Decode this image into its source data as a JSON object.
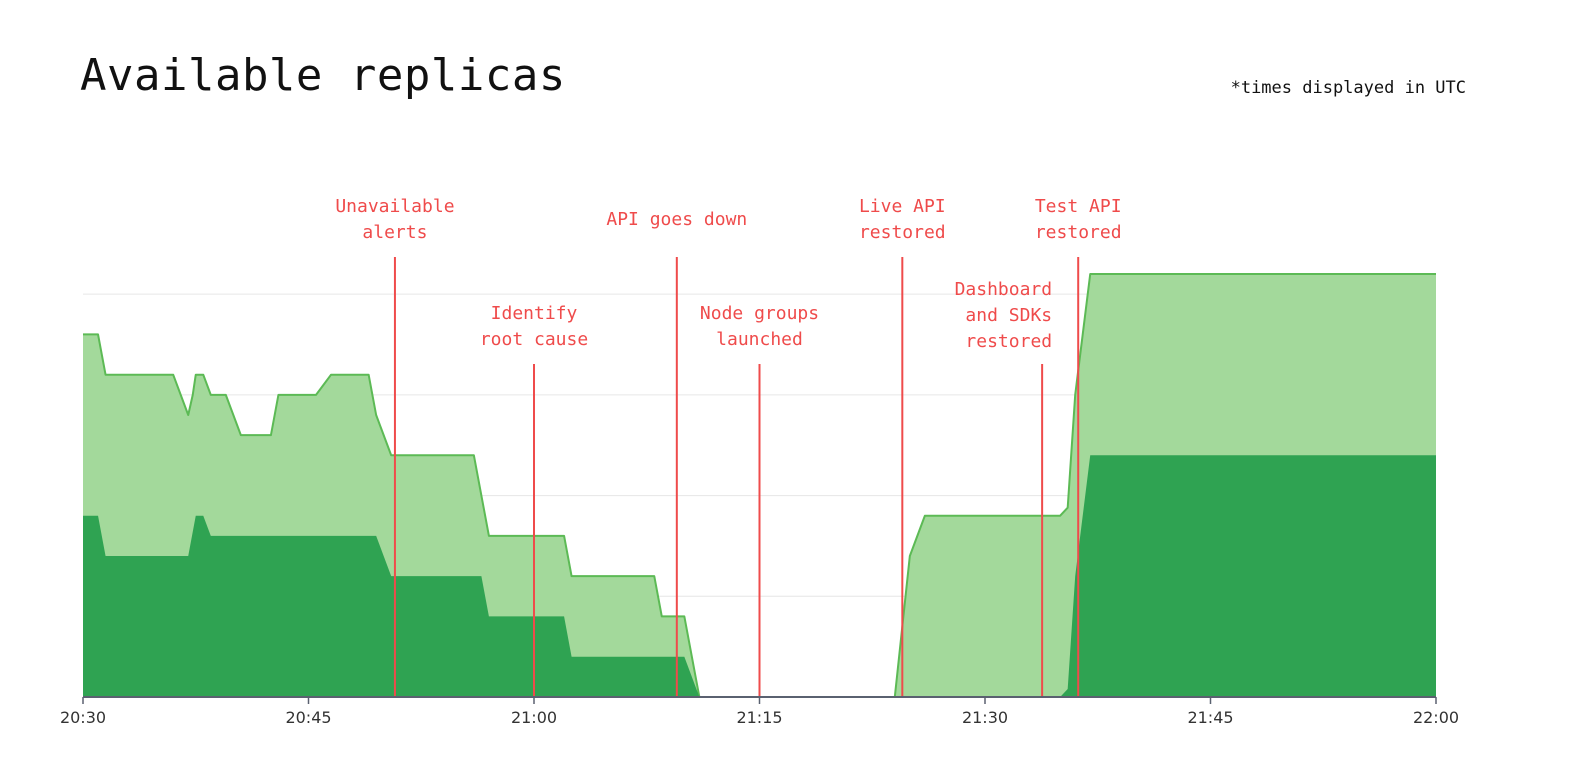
{
  "page": {
    "title": "Available replicas",
    "note": "*times displayed in UTC"
  },
  "chart_data": {
    "type": "area",
    "title": "Available replicas",
    "xlabel": "",
    "ylabel": "",
    "grid": true,
    "legend": "none",
    "x_unit": "minutes",
    "x_domain": [
      0,
      90
    ],
    "y_domain": [
      0,
      105
    ],
    "x_ticks": [
      {
        "value": 0,
        "label": "20:30"
      },
      {
        "value": 15,
        "label": "20:45"
      },
      {
        "value": 30,
        "label": "21:00"
      },
      {
        "value": 45,
        "label": "21:15"
      },
      {
        "value": 60,
        "label": "21:30"
      },
      {
        "value": 75,
        "label": "21:45"
      },
      {
        "value": 90,
        "label": "22:00"
      }
    ],
    "y_grid": [
      0,
      25,
      50,
      75,
      100
    ],
    "colors": {
      "light_fill": "#a3d99b",
      "light_line": "#5cba55",
      "dark_fill": "#2fa352",
      "event": "#ef4b4b",
      "axis": "#5a6170",
      "grid": "#e6e6e6"
    },
    "series": [
      {
        "values": [
          {
            "x": 0,
            "y": 90
          },
          {
            "x": 1,
            "y": 90
          },
          {
            "x": 1.5,
            "y": 80
          },
          {
            "x": 6,
            "y": 80
          },
          {
            "x": 7,
            "y": 70
          },
          {
            "x": 7.3,
            "y": 75
          },
          {
            "x": 7.5,
            "y": 80
          },
          {
            "x": 8,
            "y": 80
          },
          {
            "x": 8.5,
            "y": 75
          },
          {
            "x": 9.5,
            "y": 75
          },
          {
            "x": 10.5,
            "y": 65
          },
          {
            "x": 12.5,
            "y": 65
          },
          {
            "x": 13,
            "y": 75
          },
          {
            "x": 15.5,
            "y": 75
          },
          {
            "x": 16.5,
            "y": 80
          },
          {
            "x": 19,
            "y": 80
          },
          {
            "x": 19.5,
            "y": 70
          },
          {
            "x": 20.5,
            "y": 60
          },
          {
            "x": 26,
            "y": 60
          },
          {
            "x": 27,
            "y": 40
          },
          {
            "x": 32,
            "y": 40
          },
          {
            "x": 32.5,
            "y": 30
          },
          {
            "x": 38,
            "y": 30
          },
          {
            "x": 38.5,
            "y": 20
          },
          {
            "x": 40,
            "y": 20
          },
          {
            "x": 41,
            "y": 0
          },
          {
            "x": 54,
            "y": 0
          },
          {
            "x": 55,
            "y": 35
          },
          {
            "x": 56,
            "y": 45
          },
          {
            "x": 65,
            "y": 45
          },
          {
            "x": 65.5,
            "y": 47
          },
          {
            "x": 66,
            "y": 75
          },
          {
            "x": 66.5,
            "y": 90
          },
          {
            "x": 67,
            "y": 105
          },
          {
            "x": 90,
            "y": 105
          }
        ]
      },
      {
        "values": [
          {
            "x": 0,
            "y": 45
          },
          {
            "x": 1,
            "y": 45
          },
          {
            "x": 1.5,
            "y": 35
          },
          {
            "x": 7,
            "y": 35
          },
          {
            "x": 7.5,
            "y": 45
          },
          {
            "x": 8,
            "y": 45
          },
          {
            "x": 8.5,
            "y": 40
          },
          {
            "x": 19.5,
            "y": 40
          },
          {
            "x": 20.5,
            "y": 30
          },
          {
            "x": 26.5,
            "y": 30
          },
          {
            "x": 27,
            "y": 20
          },
          {
            "x": 32,
            "y": 20
          },
          {
            "x": 32.5,
            "y": 10
          },
          {
            "x": 40,
            "y": 10
          },
          {
            "x": 41,
            "y": 0
          },
          {
            "x": 65,
            "y": 0
          },
          {
            "x": 65.5,
            "y": 2
          },
          {
            "x": 66,
            "y": 30
          },
          {
            "x": 67,
            "y": 60
          },
          {
            "x": 90,
            "y": 60
          }
        ]
      }
    ],
    "events": [
      {
        "x": 20.75,
        "lines": [
          "Unavailable",
          "alerts"
        ],
        "tier": "top",
        "align": "center"
      },
      {
        "x": 30,
        "lines": [
          "Identify",
          "root cause"
        ],
        "tier": "mid",
        "align": "center"
      },
      {
        "x": 39.5,
        "lines": [
          "API goes down"
        ],
        "tier": "top",
        "align": "center"
      },
      {
        "x": 45,
        "lines": [
          "Node groups",
          "launched"
        ],
        "tier": "mid",
        "align": "center"
      },
      {
        "x": 54.5,
        "lines": [
          "Live API",
          "restored"
        ],
        "tier": "top",
        "align": "center"
      },
      {
        "x": 63.8,
        "lines": [
          "Dashboard",
          "and SDKs",
          "restored"
        ],
        "tier": "low",
        "align": "end"
      },
      {
        "x": 66.2,
        "lines": [
          "Test API",
          "restored"
        ],
        "tier": "top",
        "align": "center"
      }
    ]
  }
}
